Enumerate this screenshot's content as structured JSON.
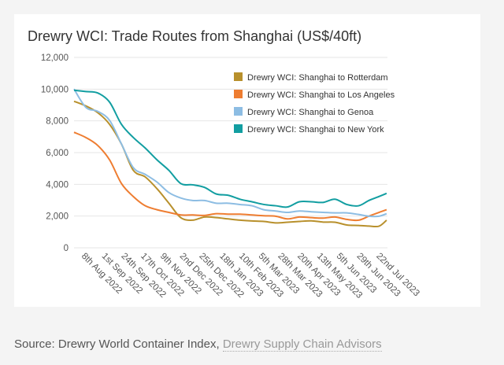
{
  "chart_data": {
    "type": "line",
    "title": "Drewry WCI: Trade Routes from Shanghai (US$/40ft)",
    "xlabel": "",
    "ylabel": "",
    "ylim": [
      0,
      12000
    ],
    "yticks": [
      "0",
      "2,000",
      "4,000",
      "6,000",
      "8,000",
      "10,000",
      "12,000"
    ],
    "xlim": [
      "2022-07-26",
      "2023-07-31"
    ],
    "xticks": [
      {
        "date": "2022-08-08",
        "label": "8th Aug 2022"
      },
      {
        "date": "2022-09-01",
        "label": "1st Sep 2022"
      },
      {
        "date": "2022-09-24",
        "label": "24th Sep 2022"
      },
      {
        "date": "2022-10-17",
        "label": "17th Oct 2022"
      },
      {
        "date": "2022-11-09",
        "label": "9th Nov 2022"
      },
      {
        "date": "2022-12-02",
        "label": "2nd Dec 2022"
      },
      {
        "date": "2022-12-25",
        "label": "25th Dec 2022"
      },
      {
        "date": "2023-01-18",
        "label": "18th Jan 2023"
      },
      {
        "date": "2023-02-10",
        "label": "10th Feb 2023"
      },
      {
        "date": "2023-03-05",
        "label": "5th Mar 2023"
      },
      {
        "date": "2023-03-28",
        "label": "28th Mar 2023"
      },
      {
        "date": "2023-04-20",
        "label": "20th Apr 2023"
      },
      {
        "date": "2023-05-13",
        "label": "13th May 2023"
      },
      {
        "date": "2023-06-05",
        "label": "5th Jun 2023"
      },
      {
        "date": "2023-06-29",
        "label": "29th Jun 2023"
      },
      {
        "date": "2023-07-22",
        "label": "22nd Jul 2023"
      }
    ],
    "grid": true,
    "legend_position": "top-right",
    "x": [
      "2022-07-26",
      "2022-08-09",
      "2022-08-23",
      "2022-09-06",
      "2022-09-20",
      "2022-10-04",
      "2022-10-18",
      "2022-11-01",
      "2022-11-15",
      "2022-11-29",
      "2022-12-13",
      "2022-12-27",
      "2023-01-10",
      "2023-01-24",
      "2023-02-07",
      "2023-02-21",
      "2023-03-07",
      "2023-03-21",
      "2023-04-04",
      "2023-04-18",
      "2023-05-02",
      "2023-05-16",
      "2023-05-30",
      "2023-06-13",
      "2023-06-27",
      "2023-07-09",
      "2023-07-21",
      "2023-07-30"
    ],
    "series": [
      {
        "name": "Drewry WCI: Shanghai to Rotterdam",
        "color": "#b8902c",
        "values": [
          9235,
          8940,
          8520,
          7780,
          6540,
          4880,
          4470,
          3720,
          2810,
          1900,
          1740,
          1940,
          1900,
          1820,
          1740,
          1690,
          1660,
          1570,
          1610,
          1660,
          1700,
          1620,
          1610,
          1440,
          1410,
          1370,
          1360,
          1740
        ]
      },
      {
        "name": "Drewry WCI: Shanghai to Los Angeles",
        "color": "#ee7d31",
        "values": [
          7280,
          6950,
          6450,
          5540,
          4050,
          3230,
          2650,
          2400,
          2230,
          2070,
          2070,
          2040,
          2150,
          2120,
          2120,
          2070,
          2020,
          1990,
          1820,
          1940,
          1900,
          1870,
          1940,
          1790,
          1740,
          1990,
          2230,
          2400
        ]
      },
      {
        "name": "Drewry WCI: Shanghai to Genoa",
        "color": "#8dbde3",
        "values": [
          10010,
          8850,
          8600,
          8030,
          6540,
          5050,
          4630,
          4140,
          3480,
          3140,
          2980,
          2980,
          2810,
          2810,
          2730,
          2650,
          2400,
          2320,
          2230,
          2320,
          2270,
          2230,
          2200,
          2200,
          2100,
          1990,
          1990,
          2150
        ]
      },
      {
        "name": "Drewry WCI: Shanghai to New York",
        "color": "#129ea1",
        "values": [
          9930,
          9850,
          9760,
          9180,
          7780,
          6950,
          6290,
          5540,
          4880,
          4050,
          3970,
          3810,
          3390,
          3310,
          3060,
          2900,
          2730,
          2650,
          2570,
          2900,
          2900,
          2860,
          3060,
          2730,
          2650,
          2980,
          3230,
          3430
        ]
      }
    ]
  },
  "source": {
    "prefix": "Source: Drewry World Container Index, ",
    "link": "Drewry Supply Chain Advisors"
  }
}
